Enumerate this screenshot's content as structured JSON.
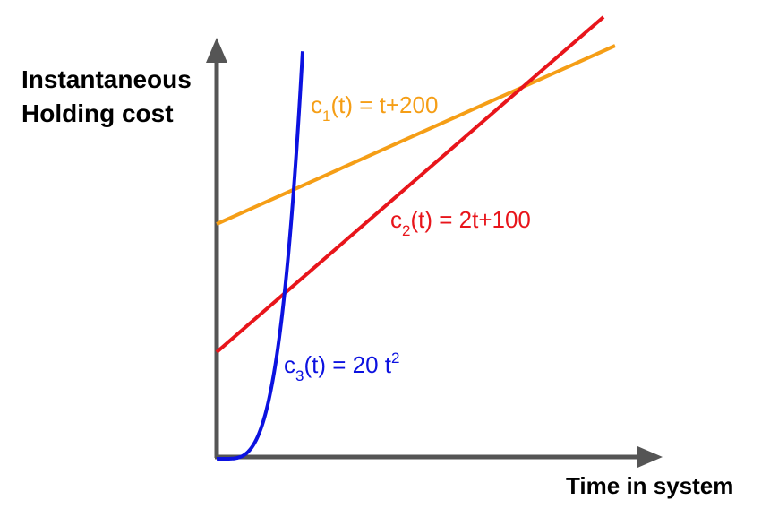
{
  "y_axis_label": [
    "Instantaneous",
    "Holding cost"
  ],
  "x_axis_label": "Time in system",
  "curves": [
    {
      "symbol": "c",
      "subscript": "1",
      "formula": "(t) = t+200",
      "color": "#f59e16"
    },
    {
      "symbol": "c",
      "subscript": "2",
      "formula": "(t) = 2t+100",
      "color": "#e8151b"
    },
    {
      "symbol": "c",
      "subscript": "3",
      "formula": "(t) = 20 t",
      "superscript": "2",
      "color": "#0c12e0"
    }
  ]
}
